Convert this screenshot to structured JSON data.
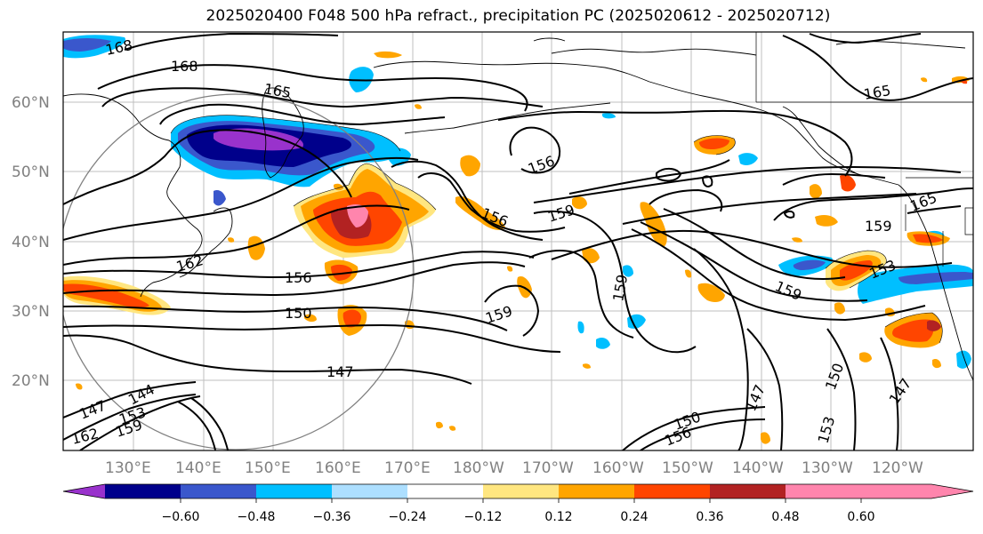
{
  "title": "2025020400 F048 500 hPa refract., precipitation PC (2025020612 - 2025020712)",
  "map": {
    "lat_labels": [
      "60°N",
      "50°N",
      "40°N",
      "30°N",
      "20°N"
    ],
    "lon_labels": [
      "130°E",
      "140°E",
      "150°E",
      "160°E",
      "170°E",
      "180°W",
      "170°W",
      "160°W",
      "150°W",
      "140°W",
      "130°W",
      "120°W"
    ],
    "contour_labels": [
      "168",
      "168",
      "165",
      "165",
      "156",
      "156",
      "159",
      "159",
      "159",
      "159",
      "162",
      "156",
      "150",
      "147",
      "159",
      "153",
      "165",
      "147",
      "150",
      "147",
      "150",
      "156",
      "153",
      "144",
      "147",
      "153",
      "159",
      "162"
    ],
    "colors": {
      "very_negative": "#9932CC",
      "strong_negative": "#00008B",
      "negative": "#3A57CC",
      "moderate_negative": "#00BFFF",
      "light_negative": "#ADDFFF",
      "neutral": "#FFFFFF",
      "light_positive": "#FFE680",
      "moderate_positive": "#FFA500",
      "positive": "#FF4500",
      "strong_positive": "#B22222",
      "very_positive": "#FF85AD",
      "contour": "#000000",
      "coast": "#000000",
      "grid": "#B0B0B0",
      "circle": "#808080"
    }
  },
  "colorbar": {
    "tick_labels": [
      "−0.60",
      "−0.48",
      "−0.36",
      "−0.24",
      "−0.12",
      "0.12",
      "0.24",
      "0.36",
      "0.48",
      "0.60"
    ],
    "segment_colors": [
      "#9932CC",
      "#00008B",
      "#3A57CC",
      "#00BFFF",
      "#ADDFFF",
      "#FFFFFF",
      "#FFE680",
      "#FFA500",
      "#FF4500",
      "#B22222",
      "#FF85AD"
    ]
  }
}
